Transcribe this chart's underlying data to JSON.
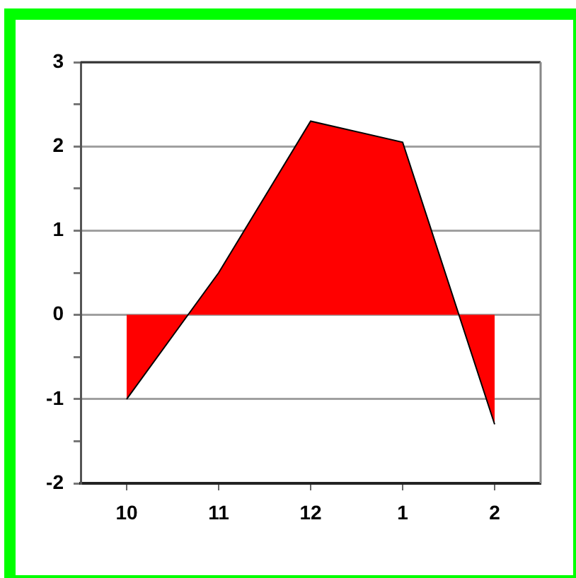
{
  "chart_data": {
    "type": "area",
    "categories": [
      "10",
      "11",
      "12",
      "1",
      "2"
    ],
    "values": [
      -1.0,
      0.5,
      2.3,
      2.05,
      -1.3
    ],
    "color": "#ff0000",
    "ylim": [
      -2,
      3
    ],
    "yticks": [
      -2,
      {
        "value": -1.5,
        "label": null
      },
      -1,
      {
        "value": -0.5,
        "label": null
      },
      0,
      {
        "value": 0.5,
        "label": null
      },
      1,
      {
        "value": 1.5,
        "label": null
      },
      2,
      {
        "value": 2.5,
        "label": null
      },
      3
    ],
    "grid": "y"
  }
}
